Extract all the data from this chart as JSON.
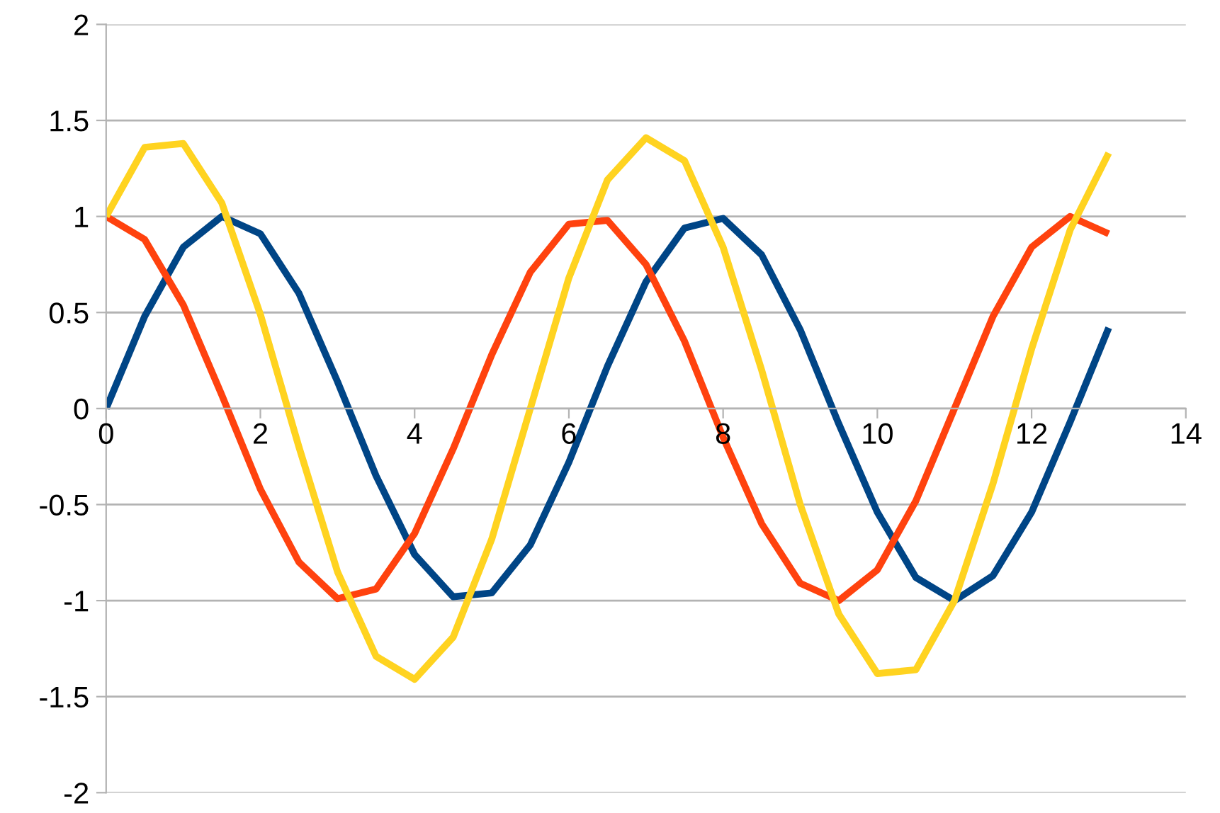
{
  "chart_data": {
    "type": "line",
    "x": [
      0,
      0.5,
      1,
      1.5,
      2,
      2.5,
      3,
      3.5,
      4,
      4.5,
      5,
      5.5,
      6,
      6.5,
      7,
      7.5,
      8,
      8.5,
      9,
      9.5,
      10,
      10.5,
      11,
      11.5,
      12,
      12.5,
      13
    ],
    "series": [
      {
        "color": "#004586",
        "values": [
          0,
          0.48,
          0.84,
          1.0,
          0.91,
          0.6,
          0.14,
          -0.35,
          -0.76,
          -0.98,
          -0.96,
          -0.71,
          -0.28,
          0.22,
          0.66,
          0.94,
          0.99,
          0.8,
          0.41,
          -0.08,
          -0.54,
          -0.88,
          -1.0,
          -0.87,
          -0.54,
          -0.07,
          0.42
        ]
      },
      {
        "color": "#ff420e",
        "values": [
          1,
          0.88,
          0.54,
          0.07,
          -0.42,
          -0.8,
          -0.99,
          -0.94,
          -0.65,
          -0.21,
          0.28,
          0.71,
          0.96,
          0.98,
          0.75,
          0.35,
          -0.15,
          -0.6,
          -0.91,
          -1.0,
          -0.84,
          -0.48,
          0.0,
          0.48,
          0.84,
          1.0,
          0.91
        ]
      },
      {
        "color": "#ffd320",
        "values": [
          1,
          1.36,
          1.38,
          1.07,
          0.49,
          -0.2,
          -0.85,
          -1.29,
          -1.41,
          -1.19,
          -0.68,
          0.0,
          0.68,
          1.19,
          1.41,
          1.29,
          0.84,
          0.2,
          -0.5,
          -1.07,
          -1.38,
          -1.36,
          -1.0,
          -0.39,
          0.31,
          0.93,
          1.33
        ]
      }
    ],
    "xlim": [
      0,
      14
    ],
    "xticks": [
      0,
      2,
      4,
      6,
      8,
      10,
      12,
      14
    ],
    "ylim": [
      -2,
      2
    ],
    "yticks": [
      -2,
      -1.5,
      -1,
      -0.5,
      0,
      0.5,
      1,
      1.5,
      2
    ],
    "grid": "y",
    "marker": "none",
    "line_style": "solid"
  }
}
